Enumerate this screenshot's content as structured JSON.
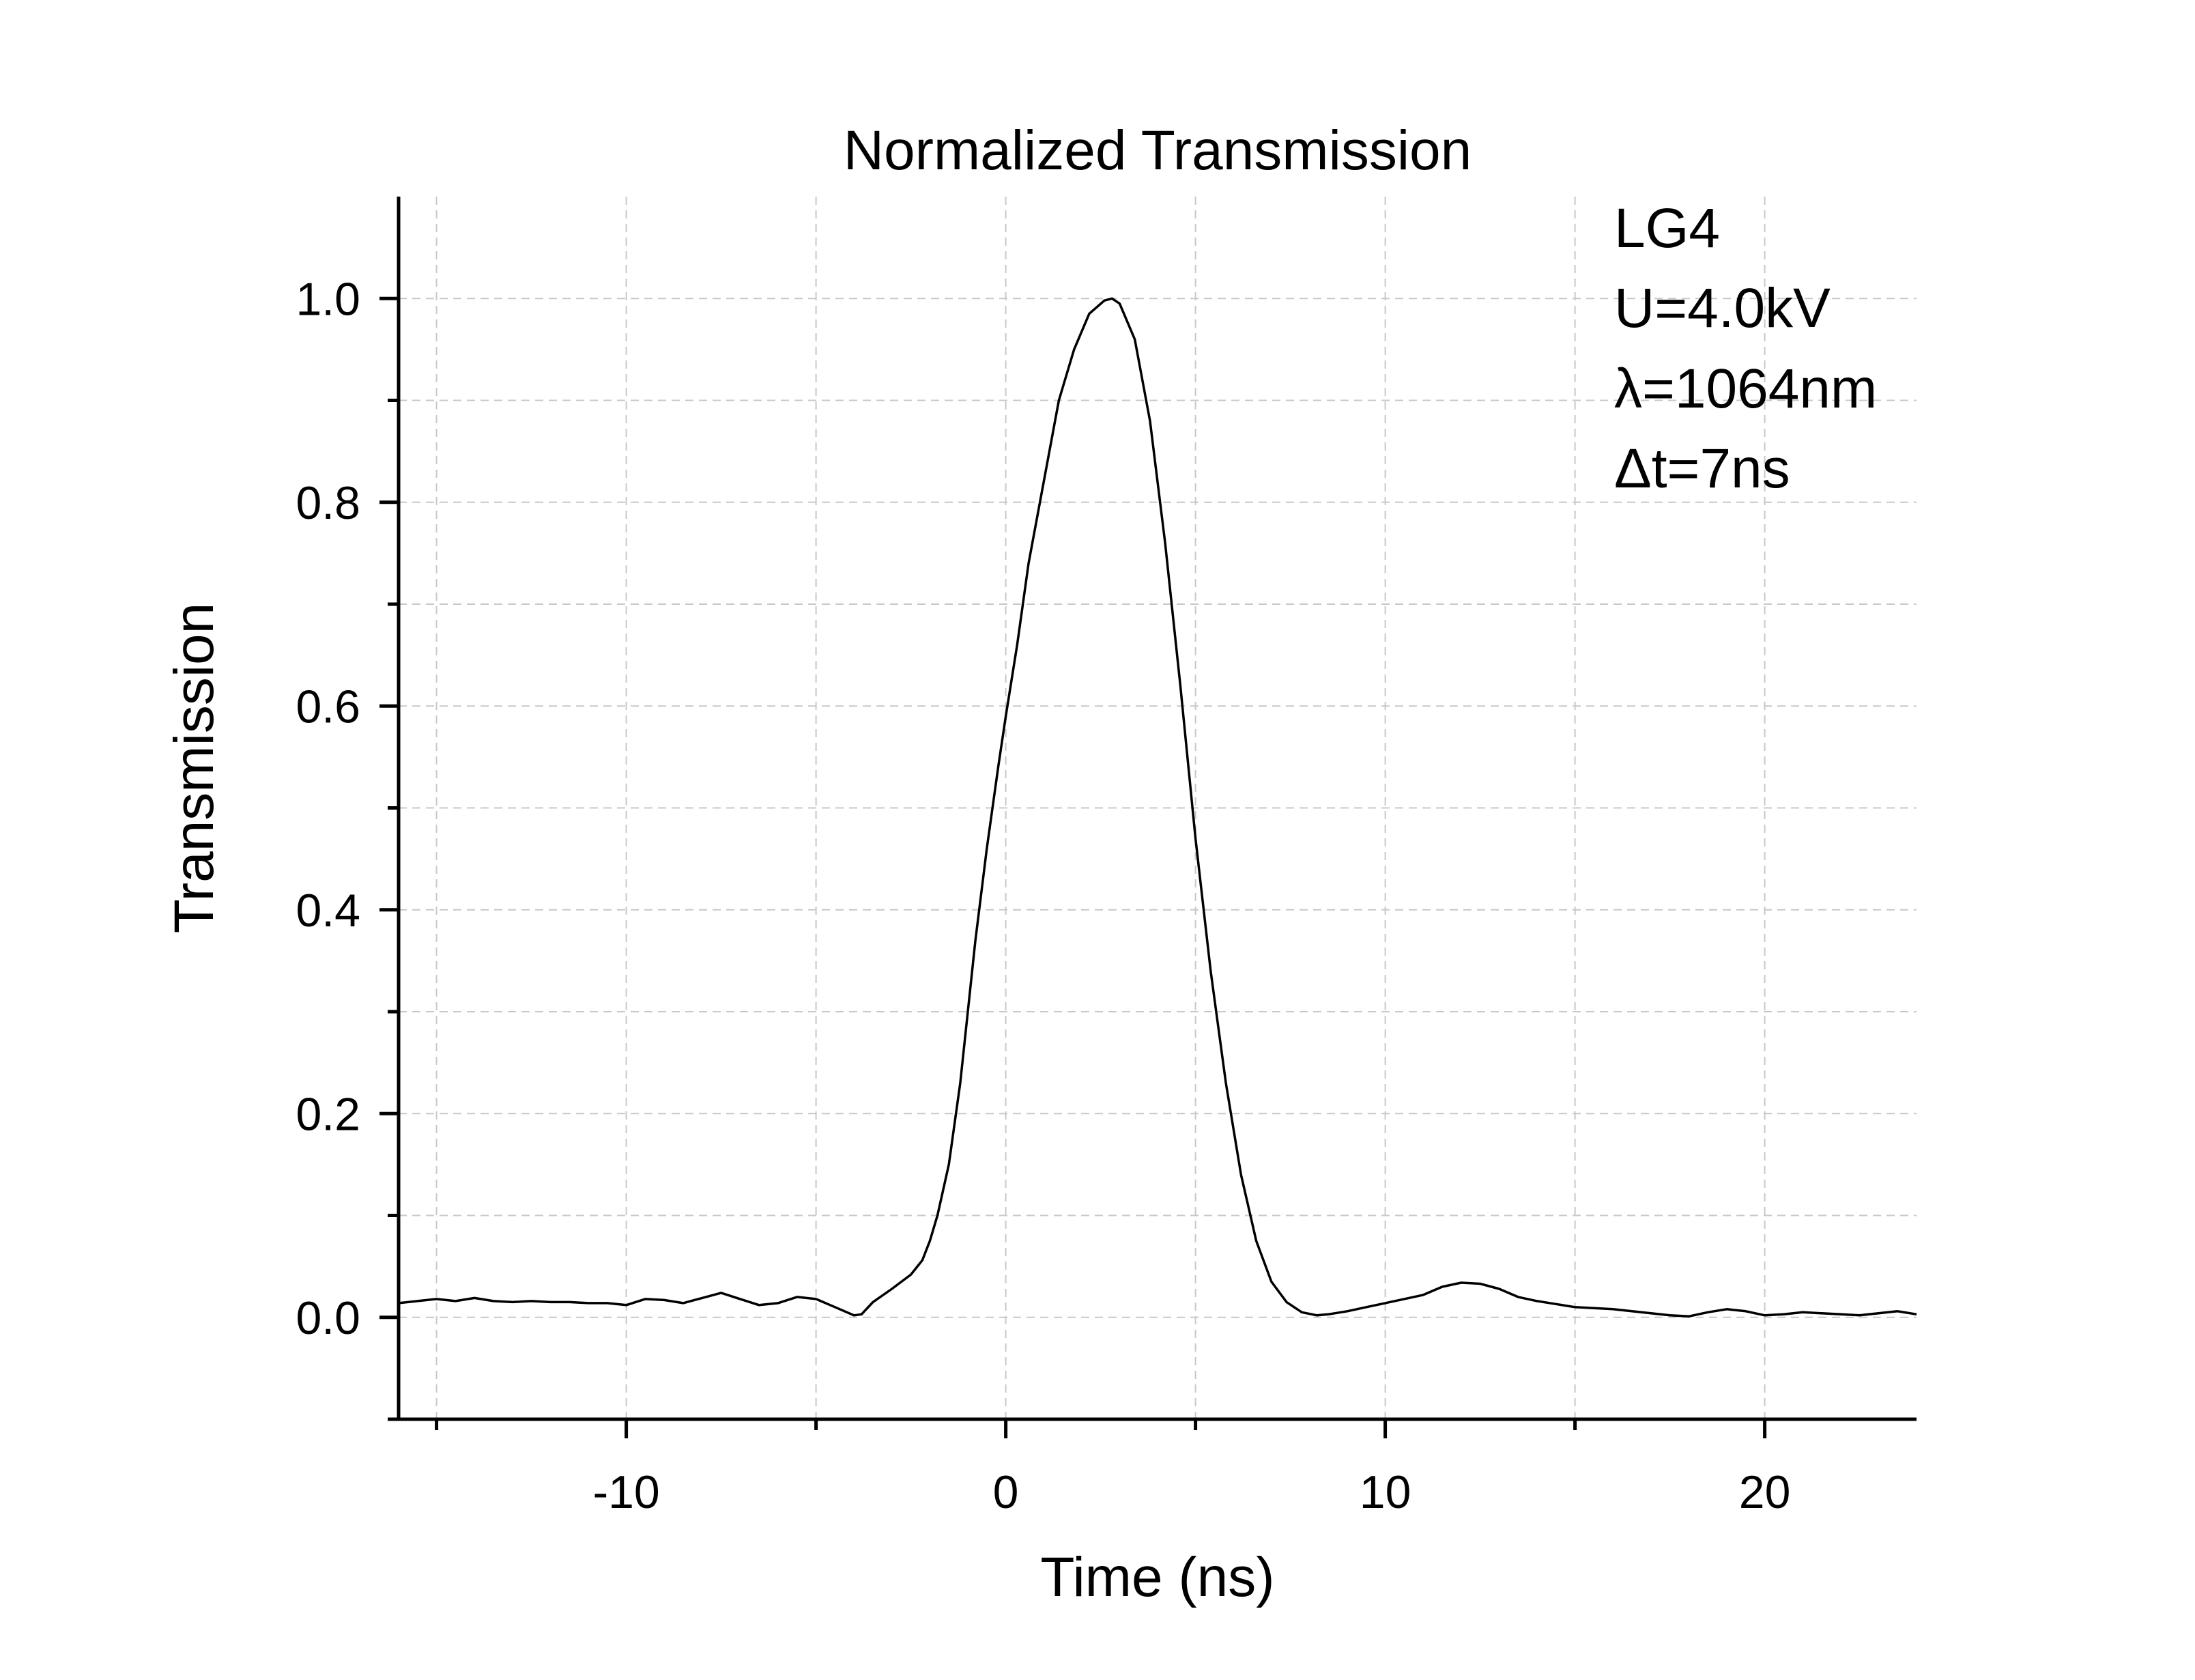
{
  "chart_data": {
    "type": "line",
    "title": "Normalized Transmission",
    "xlabel": "Time (ns)",
    "ylabel": "Transmission",
    "xlim": [
      -16,
      24
    ],
    "ylim": [
      -0.1,
      1.1
    ],
    "x_ticks": [
      -10,
      0,
      10,
      20
    ],
    "x_tick_labels": [
      "-10",
      "0",
      "10",
      "20"
    ],
    "x_minor_ticks": [
      -15,
      -5,
      5,
      15
    ],
    "y_ticks": [
      0.0,
      0.2,
      0.4,
      0.6,
      0.8,
      1.0
    ],
    "y_tick_labels": [
      "0.0",
      "0.2",
      "0.4",
      "0.6",
      "0.8",
      "1.0"
    ],
    "y_minor_ticks": [
      -0.1,
      0.1,
      0.3,
      0.5,
      0.7,
      0.9
    ],
    "grid": true,
    "annotations": [
      "LG4",
      "U=4.0kV",
      "λ=1064nm",
      "Δt=7ns"
    ],
    "annotation_position": "top-right",
    "series": [
      {
        "color": "#000000",
        "x": [
          -16,
          -15.5,
          -15,
          -14.5,
          -14,
          -13.5,
          -13,
          -12.5,
          -12,
          -11.5,
          -11,
          -10.5,
          -10,
          -9.5,
          -9,
          -8.5,
          -8,
          -7.5,
          -7,
          -6.5,
          -6,
          -5.5,
          -5,
          -4.5,
          -4,
          -3.8,
          -3.5,
          -3,
          -2.5,
          -2.2,
          -2,
          -1.8,
          -1.5,
          -1.2,
          -1,
          -0.8,
          -0.5,
          -0.2,
          0,
          0.3,
          0.6,
          1,
          1.4,
          1.8,
          2.2,
          2.6,
          2.8,
          3.0,
          3.4,
          3.8,
          4.2,
          4.6,
          5,
          5.4,
          5.8,
          6.2,
          6.6,
          7,
          7.4,
          7.8,
          8.2,
          8.5,
          9,
          9.5,
          10,
          10.5,
          11,
          11.5,
          12,
          12.5,
          13,
          13.5,
          14,
          14.5,
          15,
          15.5,
          16,
          16.5,
          17,
          17.5,
          18,
          18.5,
          19,
          19.5,
          20,
          20.5,
          21,
          21.5,
          22,
          22.5,
          23,
          23.5,
          24
        ],
        "y": [
          0.014,
          0.016,
          0.018,
          0.016,
          0.019,
          0.016,
          0.015,
          0.016,
          0.015,
          0.015,
          0.014,
          0.014,
          0.012,
          0.018,
          0.017,
          0.014,
          0.019,
          0.024,
          0.018,
          0.012,
          0.014,
          0.02,
          0.018,
          0.01,
          0.002,
          0.003,
          0.015,
          0.028,
          0.042,
          0.056,
          0.075,
          0.1,
          0.15,
          0.23,
          0.3,
          0.37,
          0.46,
          0.54,
          0.59,
          0.66,
          0.74,
          0.82,
          0.9,
          0.95,
          0.985,
          0.998,
          1.0,
          0.995,
          0.96,
          0.88,
          0.76,
          0.62,
          0.47,
          0.34,
          0.23,
          0.14,
          0.075,
          0.035,
          0.015,
          0.005,
          0.002,
          0.003,
          0.006,
          0.01,
          0.014,
          0.018,
          0.022,
          0.03,
          0.034,
          0.033,
          0.028,
          0.02,
          0.016,
          0.013,
          0.01,
          0.009,
          0.008,
          0.006,
          0.004,
          0.002,
          0.001,
          0.005,
          0.008,
          0.006,
          0.002,
          0.003,
          0.005,
          0.004,
          0.003,
          0.002,
          0.004,
          0.006,
          0.003
        ]
      }
    ]
  }
}
